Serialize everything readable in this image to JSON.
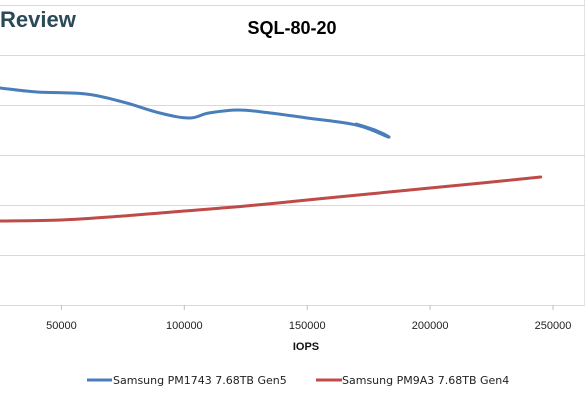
{
  "brand": {
    "text": "Review"
  },
  "chart_data": {
    "type": "line",
    "title": "SQL-80-20",
    "xlabel": "IOPS",
    "ylabel": "",
    "xlim": [
      25000,
      250000
    ],
    "ylim": [
      0,
      6
    ],
    "x_ticks": [
      50000,
      100000,
      150000,
      200000,
      250000
    ],
    "x_tick_labels": [
      "50000",
      "100000",
      "150000",
      "200000",
      "250000"
    ],
    "y_ticks": [
      0,
      1,
      2,
      3,
      4,
      5,
      6
    ],
    "grid": "horizontal",
    "legend_position": "bottom",
    "series": [
      {
        "name": "Samsung PM1743 7.68TB Gen5",
        "color": "#4a7ebb",
        "x": [
          25000,
          40000,
          60000,
          75000,
          90000,
          102000,
          110000,
          122000,
          135000,
          150000,
          170000,
          183000,
          178000,
          170000
        ],
        "y": [
          4.34,
          4.26,
          4.22,
          4.06,
          3.84,
          3.74,
          3.84,
          3.9,
          3.84,
          3.74,
          3.6,
          3.36,
          3.49,
          3.62
        ]
      },
      {
        "name": "Samsung PM9A3 7.68TB Gen4",
        "color": "#be4b48",
        "x": [
          25000,
          50000,
          75000,
          100000,
          125000,
          150000,
          175000,
          200000,
          225000,
          245000
        ],
        "y": [
          1.68,
          1.7,
          1.78,
          1.88,
          1.98,
          2.1,
          2.22,
          2.34,
          2.46,
          2.56
        ]
      }
    ]
  }
}
